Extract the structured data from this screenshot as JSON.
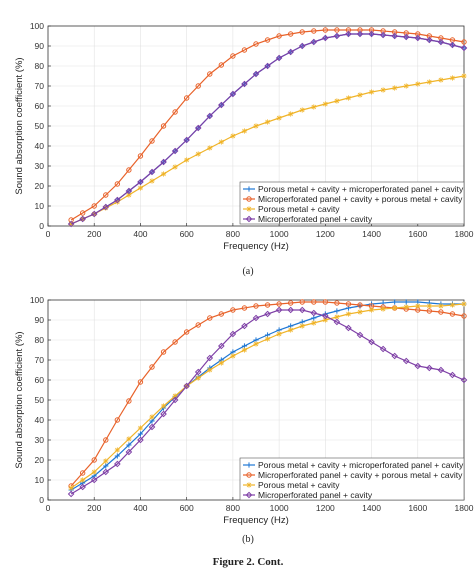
{
  "header_fragment": "",
  "figure_caption": "Figure 2. Cont.",
  "chart_data": [
    {
      "type": "line",
      "panel_label": "(a)",
      "xlabel": "Frequency (Hz)",
      "ylabel": "Sound absorption coefficient (%)",
      "xlim": [
        0,
        1800
      ],
      "ylim": [
        0,
        100
      ],
      "xticks": [
        0,
        200,
        400,
        600,
        800,
        1000,
        1200,
        1400,
        1600,
        1800
      ],
      "yticks": [
        0,
        10,
        20,
        30,
        40,
        50,
        60,
        70,
        80,
        90,
        100
      ],
      "legend_position": "bottom-right",
      "series": [
        {
          "name": "Porous metal + cavity + microperforated panel + cavity",
          "color": "#1f77d4",
          "marker": "plus",
          "x": [
            100,
            200,
            300,
            400,
            500,
            600,
            700,
            800,
            900,
            1000,
            1100,
            1200,
            1300,
            1400,
            1500,
            1600,
            1700,
            1800
          ],
          "values": [
            1,
            6,
            13,
            22,
            32,
            43,
            55,
            66,
            76,
            84,
            90,
            94,
            96,
            96,
            95,
            94,
            92,
            89
          ]
        },
        {
          "name": "Microperforated panel + cavity + porous metal + cavity",
          "color": "#e8622a",
          "marker": "circle",
          "x": [
            100,
            200,
            300,
            400,
            500,
            600,
            700,
            800,
            900,
            1000,
            1100,
            1200,
            1300,
            1400,
            1500,
            1600,
            1700,
            1800
          ],
          "values": [
            3,
            10,
            21,
            35,
            50,
            64,
            76,
            85,
            91,
            95,
            97,
            98,
            98,
            98,
            97,
            96,
            94,
            92
          ]
        },
        {
          "name": "Porous metal + cavity",
          "color": "#f0b429",
          "marker": "star",
          "x": [
            100,
            200,
            300,
            400,
            500,
            600,
            700,
            800,
            900,
            1000,
            1100,
            1200,
            1300,
            1400,
            1500,
            1600,
            1700,
            1800
          ],
          "values": [
            1,
            6,
            12,
            19,
            26,
            33,
            39,
            45,
            50,
            54,
            58,
            61,
            64,
            67,
            69,
            71,
            73,
            75
          ]
        },
        {
          "name": "Microperforated panel + cavity",
          "color": "#7e3fa6",
          "marker": "diamond",
          "x": [
            100,
            200,
            300,
            400,
            500,
            600,
            700,
            800,
            900,
            1000,
            1100,
            1200,
            1300,
            1400,
            1500,
            1600,
            1700,
            1800
          ],
          "values": [
            1,
            6,
            13,
            22,
            32,
            43,
            55,
            66,
            76,
            84,
            90,
            94,
            96,
            96,
            95,
            94,
            92,
            89
          ]
        }
      ]
    },
    {
      "type": "line",
      "panel_label": "(b)",
      "xlabel": "Frequency (Hz)",
      "ylabel": "Sound absorption coefficient (%)",
      "xlim": [
        0,
        1800
      ],
      "ylim": [
        0,
        100
      ],
      "xticks": [
        0,
        200,
        400,
        600,
        800,
        1000,
        1200,
        1400,
        1600,
        1800
      ],
      "yticks": [
        0,
        10,
        20,
        30,
        40,
        50,
        60,
        70,
        80,
        90,
        100
      ],
      "legend_position": "bottom-right",
      "series": [
        {
          "name": "Porous metal + cavity + microperforated panel + cavity",
          "color": "#1f77d4",
          "marker": "plus",
          "x": [
            100,
            200,
            300,
            400,
            500,
            600,
            700,
            800,
            900,
            1000,
            1100,
            1200,
            1300,
            1400,
            1500,
            1600,
            1700,
            1800
          ],
          "values": [
            5,
            12,
            22,
            33,
            46,
            57,
            66,
            74,
            80,
            85,
            89,
            93,
            96,
            98,
            99,
            99,
            98,
            98
          ]
        },
        {
          "name": "Microperforated panel + cavity + porous metal + cavity",
          "color": "#e8622a",
          "marker": "circle",
          "x": [
            100,
            200,
            300,
            400,
            500,
            600,
            700,
            800,
            900,
            1000,
            1100,
            1200,
            1300,
            1400,
            1500,
            1600,
            1700,
            1800
          ],
          "values": [
            7,
            20,
            40,
            59,
            74,
            84,
            91,
            95,
            97,
            98,
            99,
            99,
            98,
            97,
            96,
            95,
            94,
            92
          ]
        },
        {
          "name": "Porous metal + cavity",
          "color": "#f0b429",
          "marker": "star",
          "x": [
            100,
            200,
            300,
            400,
            500,
            600,
            700,
            800,
            900,
            1000,
            1100,
            1200,
            1300,
            1400,
            1500,
            1600,
            1700,
            1800
          ],
          "values": [
            6,
            14,
            25,
            36,
            47,
            57,
            65,
            72,
            78,
            83,
            87,
            90,
            93,
            95,
            96,
            97,
            97,
            98
          ]
        },
        {
          "name": "Microperforated panel + cavity",
          "color": "#7e3fa6",
          "marker": "diamond",
          "x": [
            100,
            200,
            300,
            400,
            500,
            600,
            700,
            800,
            900,
            1000,
            1100,
            1200,
            1300,
            1400,
            1500,
            1600,
            1700,
            1800
          ],
          "values": [
            3,
            10,
            18,
            30,
            43,
            57,
            71,
            83,
            91,
            95,
            95,
            92,
            86,
            79,
            72,
            67,
            65,
            60
          ]
        }
      ]
    }
  ]
}
